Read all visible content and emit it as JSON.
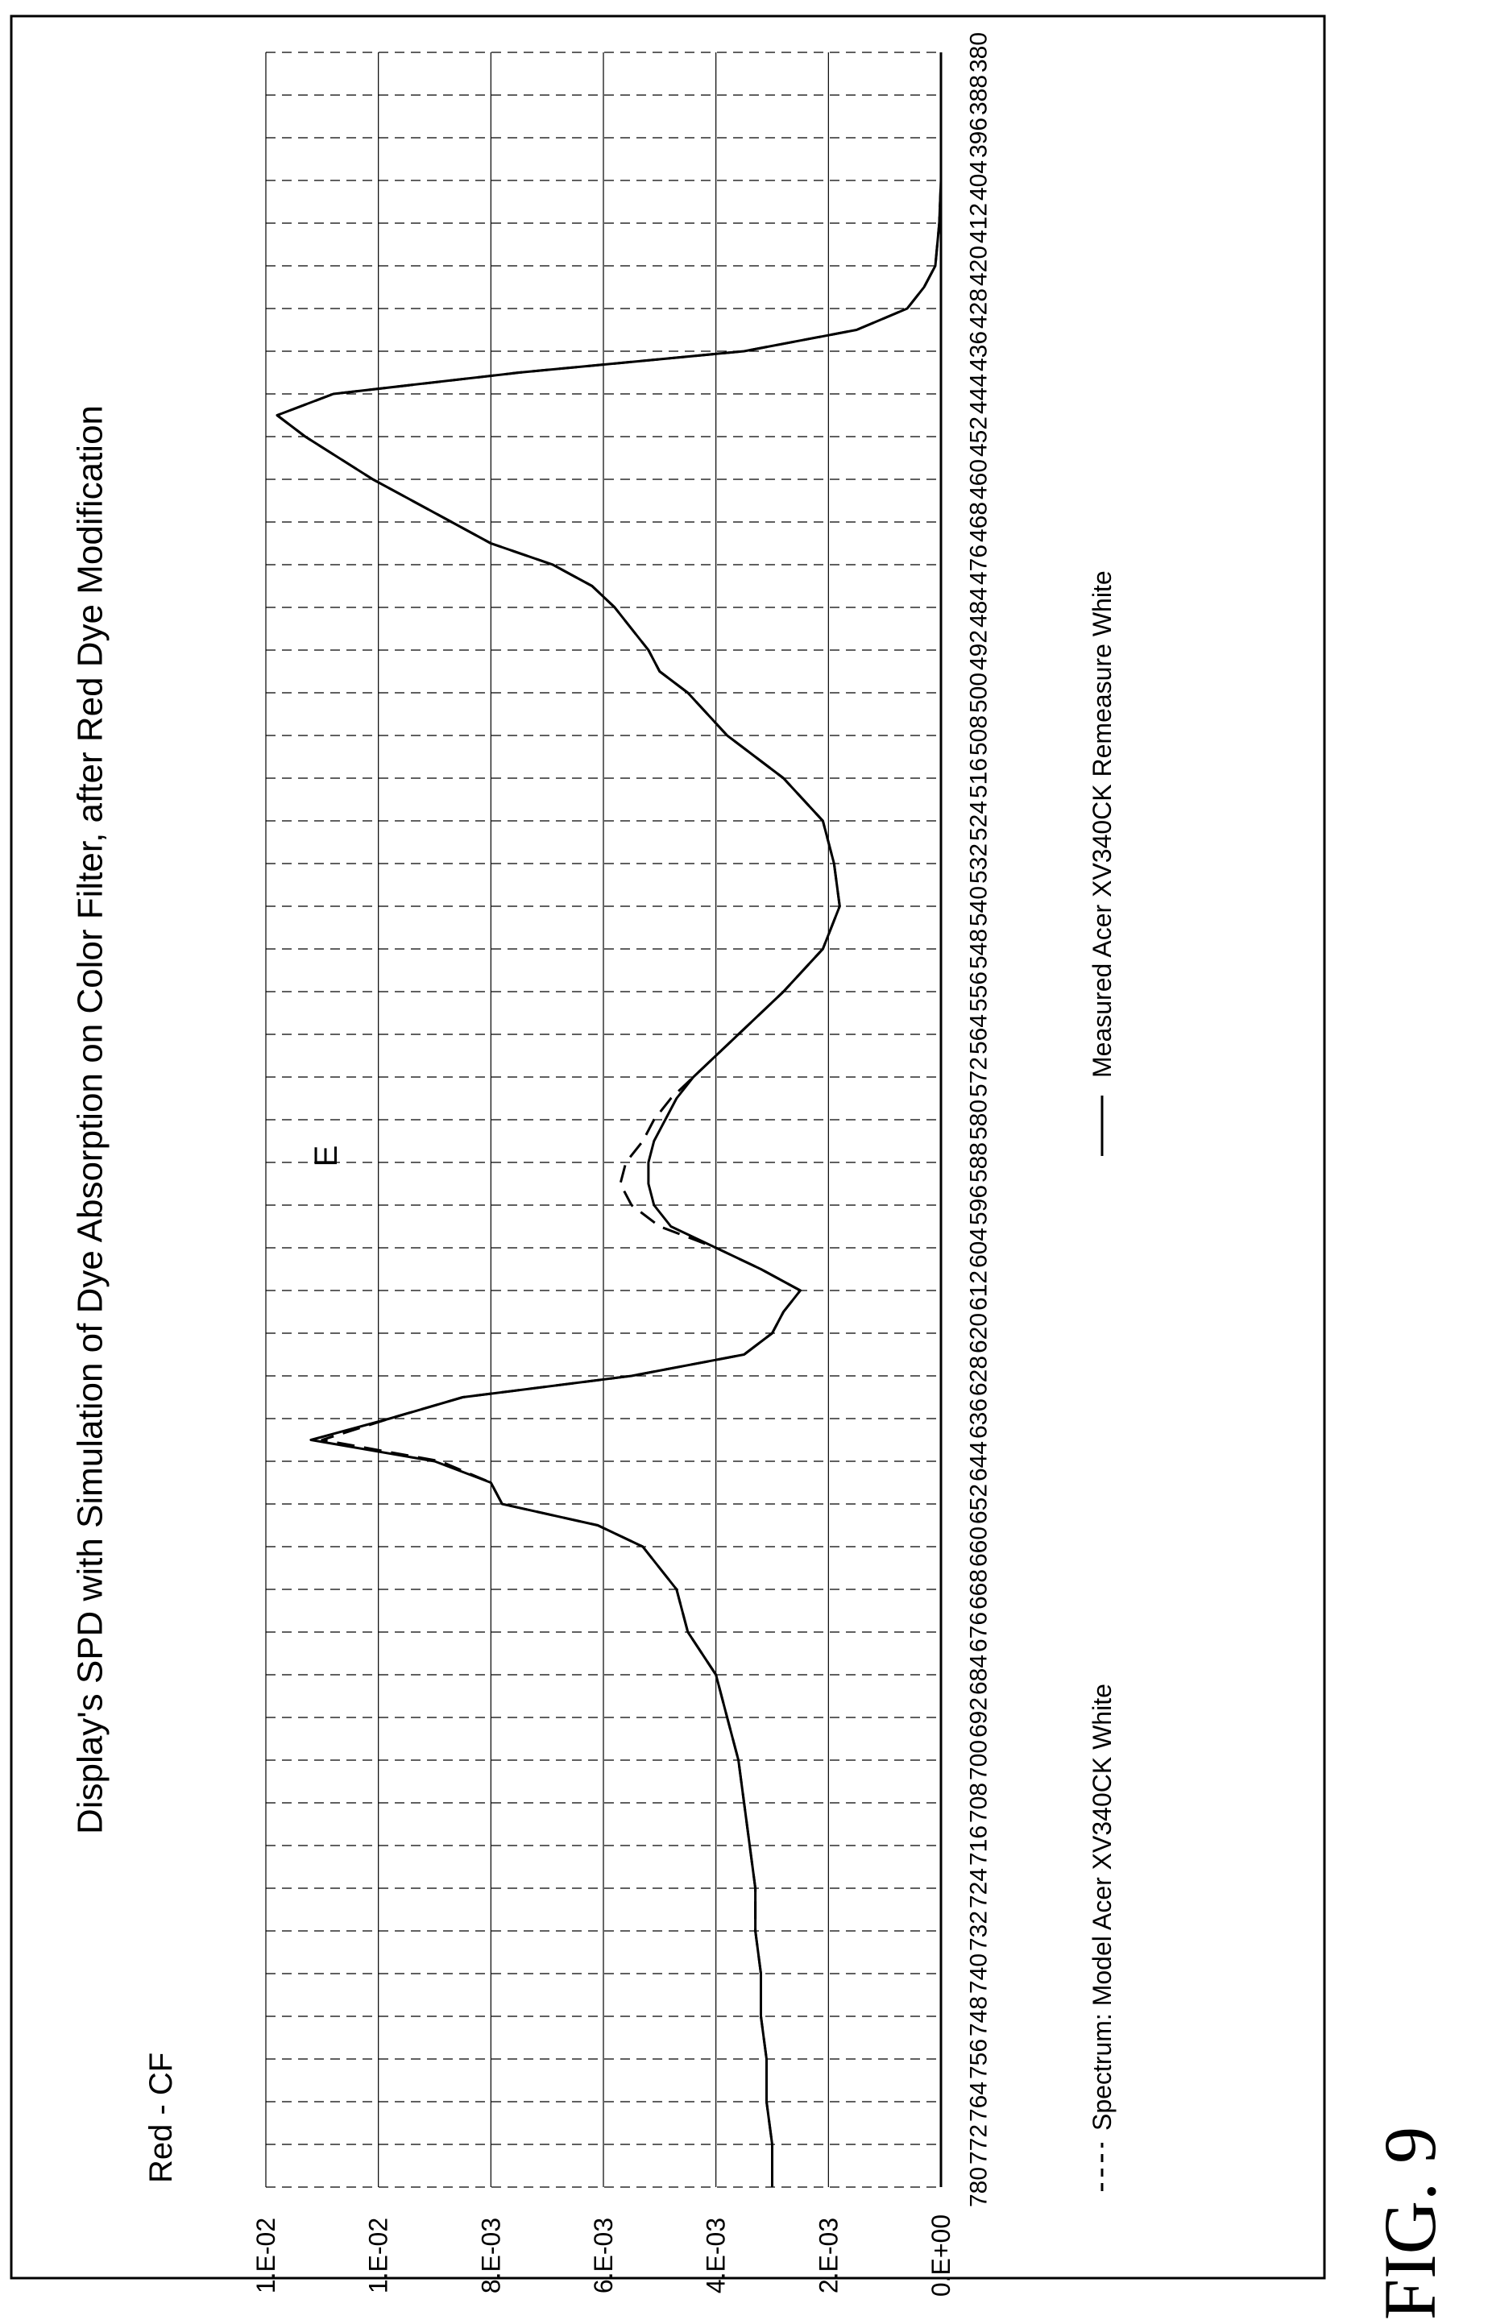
{
  "figure_label": "FIG. 9",
  "colors": {
    "ink": "#000000",
    "grid": "#000000",
    "background": "#ffffff"
  },
  "chart_data": {
    "type": "line",
    "title": "Display's SPD with Simulation of Dye Absorption on Color Filter, after Red Dye Modification",
    "subtitle": "Red - CF",
    "annotation": "E",
    "xlabel": "",
    "ylabel": "",
    "xlim": [
      380,
      780
    ],
    "ylim": [
      0,
      0.012
    ],
    "x_ticks": [
      "380",
      "388",
      "396",
      "404",
      "412",
      "420",
      "428",
      "436",
      "444",
      "452",
      "460",
      "468",
      "476",
      "484",
      "492",
      "500",
      "508",
      "516",
      "524",
      "532",
      "540",
      "548",
      "556",
      "564",
      "572",
      "580",
      "588",
      "596",
      "604",
      "612",
      "620",
      "628",
      "636",
      "644",
      "652",
      "660",
      "668",
      "676",
      "684",
      "692",
      "700",
      "708",
      "716",
      "724",
      "732",
      "740",
      "748",
      "756",
      "764",
      "772",
      "780"
    ],
    "y_ticks": [
      "0.E+00",
      "2.E-03",
      "4.E-03",
      "6.E-03",
      "8.E-03",
      "1.E-02",
      "1.E-02"
    ],
    "grid": true,
    "grid_style": "dashed",
    "legend_position": "bottom",
    "series": [
      {
        "name": "Spectrum:  Model Acer XV340CK White",
        "style": "dashed",
        "x": [
          380,
          388,
          396,
          404,
          412,
          420,
          424,
          428,
          432,
          436,
          440,
          444,
          448,
          452,
          456,
          460,
          464,
          468,
          472,
          476,
          480,
          484,
          488,
          492,
          496,
          500,
          508,
          516,
          524,
          532,
          540,
          548,
          556,
          564,
          572,
          576,
          580,
          584,
          588,
          592,
          596,
          600,
          604,
          608,
          612,
          616,
          620,
          624,
          628,
          632,
          636,
          640,
          644,
          648,
          652,
          656,
          660,
          664,
          668,
          676,
          684,
          692,
          700,
          708,
          716,
          724,
          732,
          740,
          748,
          756,
          764,
          772,
          780
        ],
        "y": [
          0,
          0,
          0,
          0,
          3e-05,
          0.0001,
          0.0003,
          0.0006,
          0.0015,
          0.0035,
          0.0075,
          0.0108,
          0.0118,
          0.0113,
          0.0107,
          0.0101,
          0.0094,
          0.0087,
          0.008,
          0.0069,
          0.0062,
          0.0058,
          0.0055,
          0.0052,
          0.005,
          0.0045,
          0.0038,
          0.0028,
          0.0021,
          0.0019,
          0.0018,
          0.0021,
          0.0028,
          0.0036,
          0.0044,
          0.0048,
          0.0051,
          0.0053,
          0.0056,
          0.0057,
          0.0055,
          0.005,
          0.004,
          0.0032,
          0.0025,
          0.0028,
          0.003,
          0.0035,
          0.0055,
          0.0085,
          0.0098,
          0.011,
          0.0089,
          0.008,
          0.0078,
          0.0061,
          0.0053,
          0.005,
          0.0047,
          0.0045,
          0.004,
          0.0038,
          0.0036,
          0.0035,
          0.0034,
          0.0033,
          0.0033,
          0.0032,
          0.0032,
          0.0031,
          0.0031,
          0.003,
          0.003
        ]
      },
      {
        "name": "Measured Acer XV340CK Remeasure White",
        "style": "solid",
        "x": [
          380,
          388,
          396,
          404,
          412,
          420,
          424,
          428,
          432,
          436,
          440,
          444,
          448,
          452,
          456,
          460,
          464,
          468,
          472,
          476,
          480,
          484,
          488,
          492,
          496,
          500,
          508,
          516,
          524,
          532,
          540,
          548,
          556,
          564,
          572,
          576,
          580,
          584,
          588,
          592,
          596,
          600,
          604,
          608,
          612,
          616,
          620,
          624,
          628,
          632,
          636,
          640,
          644,
          648,
          652,
          656,
          660,
          664,
          668,
          676,
          684,
          692,
          700,
          708,
          716,
          724,
          732,
          740,
          748,
          756,
          764,
          772,
          780
        ],
        "y": [
          0,
          0,
          0,
          0,
          3e-05,
          0.0001,
          0.0003,
          0.0006,
          0.0015,
          0.0035,
          0.0075,
          0.0108,
          0.0118,
          0.0113,
          0.0107,
          0.0101,
          0.0094,
          0.0087,
          0.008,
          0.0069,
          0.0062,
          0.0058,
          0.0055,
          0.0052,
          0.005,
          0.0045,
          0.0038,
          0.0028,
          0.0021,
          0.0019,
          0.0018,
          0.0021,
          0.0028,
          0.0036,
          0.0044,
          0.0047,
          0.0049,
          0.0051,
          0.0052,
          0.0052,
          0.0051,
          0.0048,
          0.004,
          0.0032,
          0.0025,
          0.0028,
          0.003,
          0.0035,
          0.0055,
          0.0085,
          0.0098,
          0.0112,
          0.009,
          0.008,
          0.0078,
          0.0061,
          0.0053,
          0.005,
          0.0047,
          0.0045,
          0.004,
          0.0038,
          0.0036,
          0.0035,
          0.0034,
          0.0033,
          0.0033,
          0.0032,
          0.0032,
          0.0031,
          0.0031,
          0.003,
          0.003
        ]
      }
    ]
  }
}
